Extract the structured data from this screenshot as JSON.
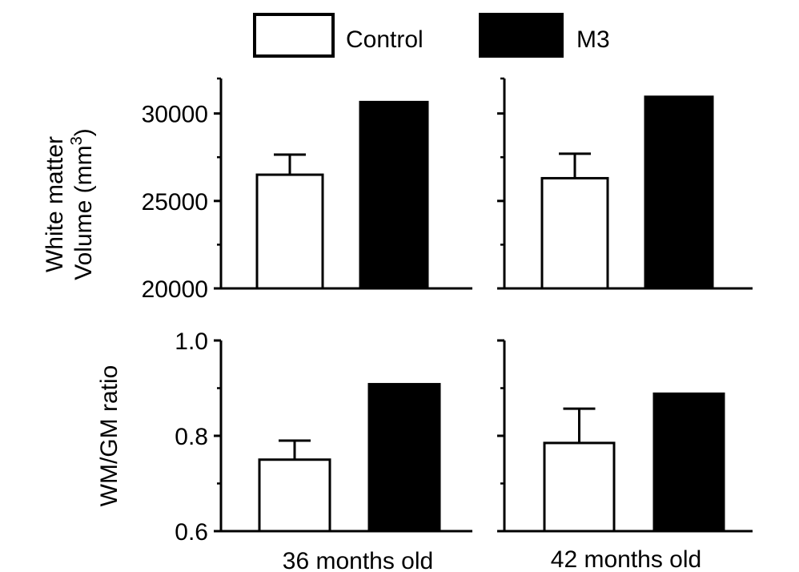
{
  "legend": {
    "items": [
      {
        "label": "Control",
        "color": "#ffffff",
        "border": "#000000"
      },
      {
        "label": "M3",
        "color": "#000000",
        "border": "#000000"
      }
    ]
  },
  "columns": [
    "36 months old",
    "42 months old"
  ],
  "rows": [
    {
      "ylabel_line1": "White matter",
      "ylabel_line2": "Volume (mm",
      "ylabel_sup": "3",
      "ylabel_end": ")"
    },
    {
      "ylabel_line1": "WM/GM ratio"
    }
  ],
  "chart_data": [
    {
      "type": "bar",
      "row": 0,
      "col": 0,
      "categories": [
        "Control",
        "M3"
      ],
      "values": [
        26500,
        30700
      ],
      "errors": [
        1150,
        0
      ],
      "ylim": [
        20000,
        32000
      ],
      "yticks": [
        20000,
        25000,
        30000
      ],
      "minor_yticks": [
        22500,
        27500,
        32000
      ],
      "ytick_labels": [
        "20000",
        "25000",
        "30000"
      ],
      "xlabel": "",
      "ylabel": "White matter Volume (mm3)"
    },
    {
      "type": "bar",
      "row": 0,
      "col": 1,
      "categories": [
        "Control",
        "M3"
      ],
      "values": [
        26300,
        31000
      ],
      "errors": [
        1400,
        0
      ],
      "ylim": [
        20000,
        32000
      ],
      "yticks": [
        20000,
        25000,
        30000
      ],
      "minor_yticks": [
        22500,
        27500,
        32000
      ],
      "ytick_labels": [
        "",
        "",
        ""
      ],
      "xlabel": "",
      "ylabel": ""
    },
    {
      "type": "bar",
      "row": 1,
      "col": 0,
      "categories": [
        "Control",
        "M3"
      ],
      "values": [
        0.75,
        0.91
      ],
      "errors": [
        0.04,
        0
      ],
      "ylim": [
        0.6,
        1.0
      ],
      "yticks": [
        0.6,
        0.8,
        1.0
      ],
      "minor_yticks": [
        0.7,
        0.9
      ],
      "ytick_labels": [
        "0.6",
        "0.8",
        "1.0"
      ],
      "xlabel": "36 months old",
      "ylabel": "WM/GM ratio"
    },
    {
      "type": "bar",
      "row": 1,
      "col": 1,
      "categories": [
        "Control",
        "M3"
      ],
      "values": [
        0.785,
        0.89
      ],
      "errors": [
        0.072,
        0
      ],
      "ylim": [
        0.6,
        1.0
      ],
      "yticks": [
        0.6,
        0.8,
        1.0
      ],
      "minor_yticks": [
        0.7,
        0.9
      ],
      "ytick_labels": [
        "",
        "",
        ""
      ],
      "xlabel": "42 months old",
      "ylabel": ""
    }
  ]
}
